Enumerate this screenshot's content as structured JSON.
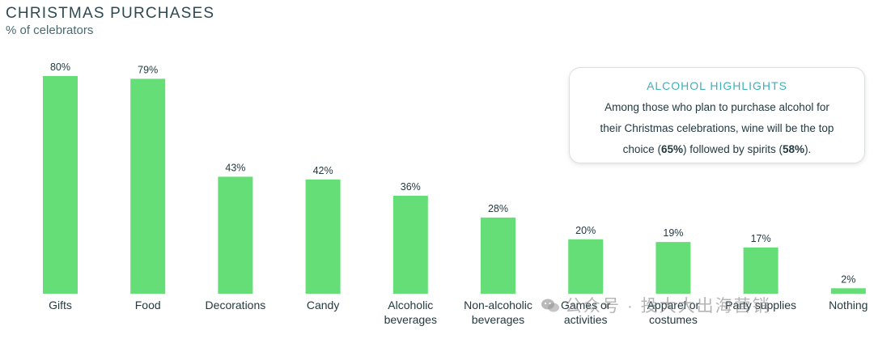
{
  "colors": {
    "bar": "#66de78",
    "text_dark": "#233a40",
    "title": "#2c4a52",
    "accent": "#3fb0b7"
  },
  "chart_data": {
    "type": "bar",
    "title": "CHRISTMAS PURCHASES",
    "subtitle": "% of celebrators",
    "xlabel": "",
    "ylabel": "",
    "ylim": [
      0,
      80
    ],
    "grid": false,
    "categories": [
      [
        "Gifts"
      ],
      [
        "Food"
      ],
      [
        "Decorations"
      ],
      [
        "Candy"
      ],
      [
        "Alcoholic",
        "beverages"
      ],
      [
        "Non-alcoholic",
        "beverages"
      ],
      [
        "Games or",
        "activities"
      ],
      [
        "Apparel or",
        "costumes"
      ],
      [
        "Party supplies"
      ],
      [
        "Nothing"
      ]
    ],
    "values": [
      80,
      79,
      43,
      42,
      36,
      28,
      20,
      19,
      17,
      2
    ],
    "data_labels": [
      "80%",
      "79%",
      "43%",
      "42%",
      "36%",
      "28%",
      "20%",
      "19%",
      "17%",
      "2%"
    ]
  },
  "callout": {
    "title": "ALCOHOL HIGHLIGHTS",
    "line1": "Among those who plan to purchase alcohol for",
    "line2": "their Christmas celebrations, wine will be the top",
    "line3_pre": "choice (",
    "wine_pct": "65%",
    "line3_mid": ") followed by spirits (",
    "spirits_pct": "58%",
    "line3_post": ")."
  },
  "watermark": {
    "text": "公众号 · 投大大出海营销",
    "icon": "wechat-icon"
  }
}
